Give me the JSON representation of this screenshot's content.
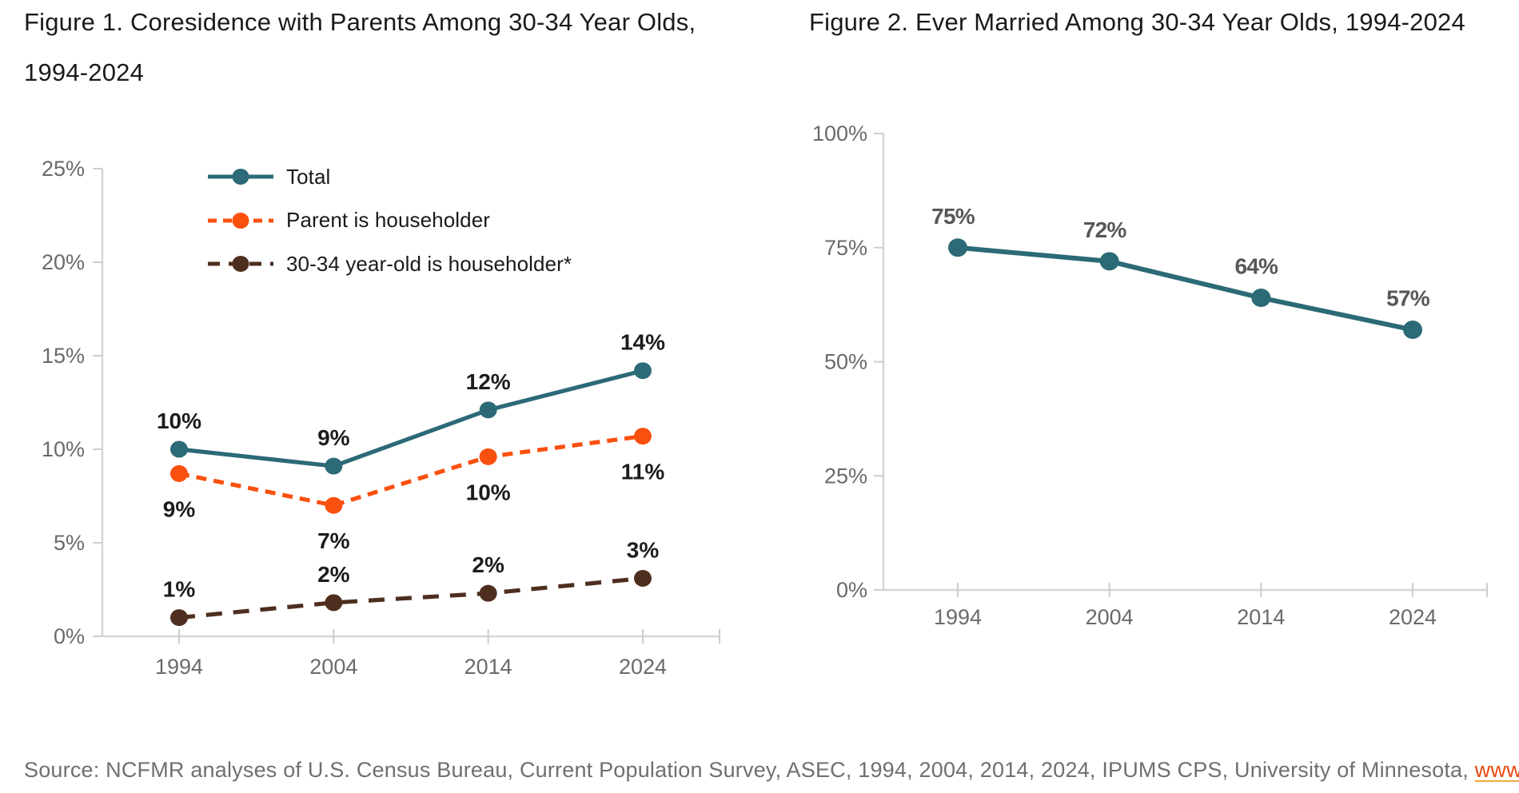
{
  "figures": [
    {
      "title": "Figure 1. Coresidence with Parents Among 30-34 Year Olds, 1994-2024"
    },
    {
      "title": "Figure 2. Ever Married Among 30-34 Year Olds, 1994-2024"
    }
  ],
  "source": {
    "prefix": "Source: NCFMR analyses of U.S. Census Bureau, Current Population Survey, ASEC, 1994, 2004, 2014, 2024, IPUMS CPS, University of Minnesota, ",
    "link_text": "www.ipums.org"
  },
  "colors": {
    "teal": "#2B6A76",
    "orange": "#FA500F",
    "brown": "#4D2E1F",
    "axis": "#D6D6D6",
    "tick": "#CDCDCD",
    "axis_label": "#6a6a6a",
    "data_label_dark": "#1C1C1C",
    "data_label_gray": "#575757",
    "link": "#E8480D"
  },
  "chart_data": [
    {
      "type": "line",
      "title": "Figure 1. Coresidence with Parents Among 30-34 Year Olds, 1994-2024",
      "categories": [
        "1994",
        "2004",
        "2014",
        "2024"
      ],
      "series": [
        {
          "name": "Total",
          "values": [
            10.0,
            9.1,
            12.1,
            14.2
          ],
          "labels": [
            "10%",
            "9%",
            "12%",
            "14%"
          ],
          "color": "#2B6A76",
          "dash": "solid",
          "label_position": "above"
        },
        {
          "name": "Parent is householder",
          "values": [
            8.7,
            7.0,
            9.6,
            10.7
          ],
          "labels": [
            "9%",
            "7%",
            "10%",
            "11%"
          ],
          "color": "#FA500F",
          "dash": "dashed-short",
          "label_position": "below"
        },
        {
          "name": "30-34 year-old is householder*",
          "values": [
            1.0,
            1.8,
            2.3,
            3.1
          ],
          "labels": [
            "1%",
            "2%",
            "2%",
            "3%"
          ],
          "color": "#4D2E1F",
          "dash": "dashed-long",
          "label_position": "above"
        }
      ],
      "xlabel": "",
      "ylabel": "",
      "ylim": [
        0,
        25
      ],
      "ytick_step": 5,
      "ytick_labels": [
        "0%",
        "5%",
        "10%",
        "15%",
        "20%",
        "25%"
      ],
      "grid": false,
      "legend_position": "inside-top-left"
    },
    {
      "type": "line",
      "title": "Figure 2. Ever Married Among 30-34 Year Olds, 1994-2024",
      "categories": [
        "1994",
        "2004",
        "2014",
        "2024"
      ],
      "series": [
        {
          "name": "Ever married",
          "values": [
            75,
            72,
            64,
            57
          ],
          "labels": [
            "75%",
            "72%",
            "64%",
            "57%"
          ],
          "color": "#2B6A76",
          "dash": "solid",
          "label_position": "above"
        }
      ],
      "xlabel": "",
      "ylabel": "",
      "ylim": [
        0,
        100
      ],
      "ytick_step": 25,
      "ytick_labels": [
        "0%",
        "25%",
        "50%",
        "75%",
        "100%"
      ],
      "grid": false,
      "legend_position": "none"
    }
  ]
}
